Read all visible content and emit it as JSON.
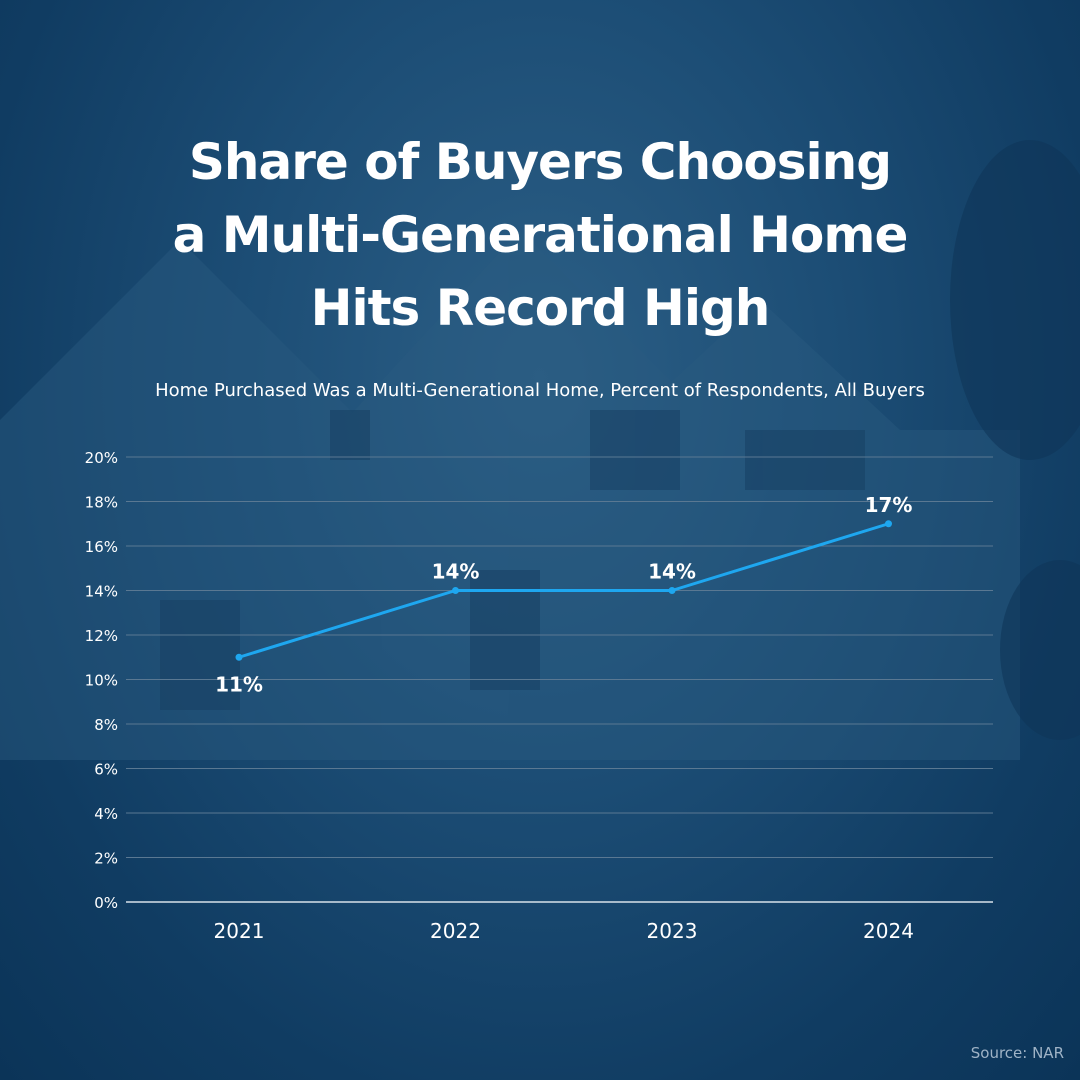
{
  "header": {
    "title": "Share of Buyers Choosing a Multi-Generational Home Hits Record High",
    "subtitle": "Home Purchased Was a Multi-Generational Home, Percent of Respondents, All Buyers"
  },
  "footer": {
    "source": "Source: NAR"
  },
  "colors": {
    "background": "#103c62",
    "line": "#1ea7f0",
    "text": "#ffffff",
    "grid": "#5a7892"
  },
  "chart_data": {
    "type": "line",
    "title": "Share of Buyers Choosing a Multi-Generational Home Hits Record High",
    "subtitle": "Home Purchased Was a Multi-Generational Home, Percent of Respondents, All Buyers",
    "categories": [
      "2021",
      "2022",
      "2023",
      "2024"
    ],
    "values": [
      11,
      14,
      14,
      17
    ],
    "data_labels": [
      "11%",
      "14%",
      "14%",
      "17%"
    ],
    "ylim": [
      0,
      20
    ],
    "yticks": [
      "0%",
      "2%",
      "4%",
      "6%",
      "8%",
      "10%",
      "12%",
      "14%",
      "16%",
      "18%",
      "20%"
    ],
    "grid": true,
    "legend": "none"
  }
}
